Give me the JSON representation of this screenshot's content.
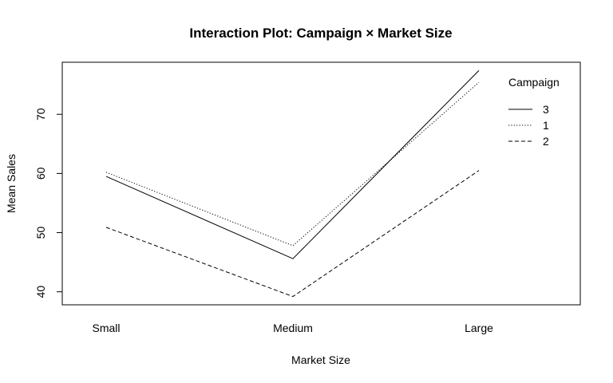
{
  "chart_data": {
    "type": "line",
    "title": "Interaction Plot: Campaign × Market Size",
    "xlabel": "Market Size",
    "ylabel": "Mean Sales",
    "categories": [
      "Small",
      "Medium",
      "Large"
    ],
    "yticks": [
      40,
      50,
      60,
      70
    ],
    "ylim": [
      37.8,
      78.8
    ],
    "grid": false,
    "legend": {
      "title": "Campaign",
      "placement": "top-right"
    },
    "series": [
      {
        "name": "3",
        "values": [
          59.5,
          45.6,
          77.4
        ],
        "linestyle": "solid"
      },
      {
        "name": "1",
        "values": [
          60.2,
          47.8,
          75.4
        ],
        "linestyle": "dotted"
      },
      {
        "name": "2",
        "values": [
          50.9,
          39.2,
          60.5
        ],
        "linestyle": "dashed"
      }
    ]
  }
}
